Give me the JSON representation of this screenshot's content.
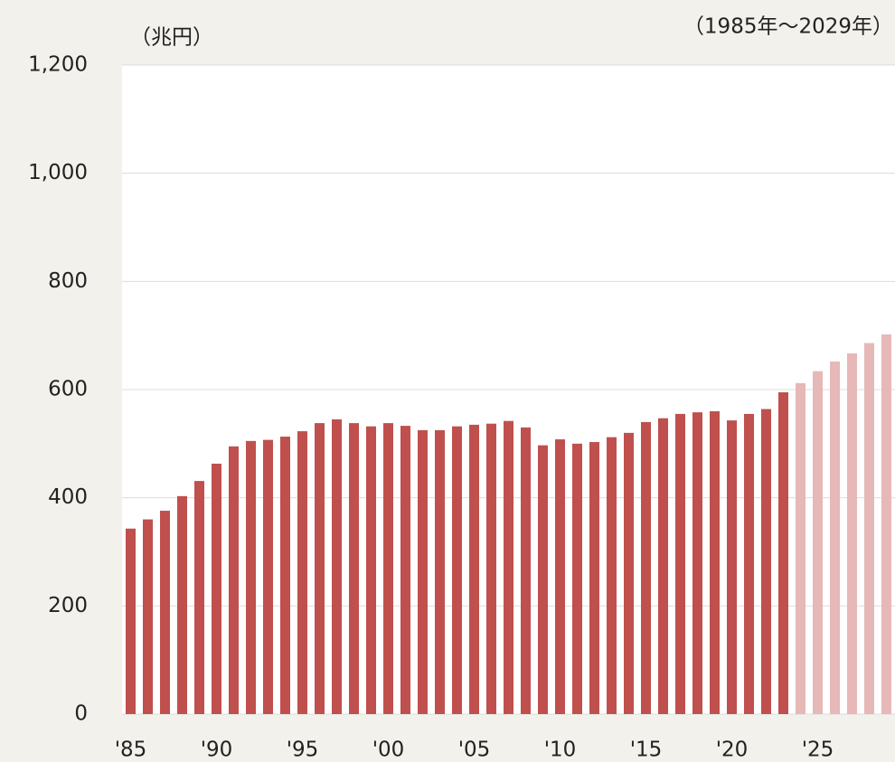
{
  "chart_data": {
    "type": "bar",
    "unit_label": "（兆円）",
    "period_label": "（1985年～2029年）",
    "categories": [
      "'85",
      null,
      null,
      null,
      null,
      "'90",
      null,
      null,
      null,
      null,
      "'95",
      null,
      null,
      null,
      null,
      "'00",
      null,
      null,
      null,
      null,
      "'05",
      null,
      null,
      null,
      null,
      "'10",
      null,
      null,
      null,
      null,
      "'15",
      null,
      null,
      null,
      null,
      "'20",
      null,
      null,
      null,
      null,
      "'25",
      null,
      null,
      null,
      null
    ],
    "values": [
      343,
      360,
      376,
      403,
      431,
      463,
      495,
      505,
      507,
      513,
      523,
      538,
      545,
      538,
      532,
      538,
      533,
      525,
      525,
      532,
      535,
      537,
      542,
      530,
      497,
      508,
      500,
      503,
      512,
      520,
      540,
      547,
      555,
      558,
      560,
      543,
      555,
      564,
      595,
      612,
      634,
      652,
      667,
      686,
      702
    ],
    "colors": [
      "#c0504d",
      "#c0504d",
      "#c0504d",
      "#c0504d",
      "#c0504d",
      "#c0504d",
      "#c0504d",
      "#c0504d",
      "#c0504d",
      "#c0504d",
      "#c0504d",
      "#c0504d",
      "#c0504d",
      "#c0504d",
      "#c0504d",
      "#c0504d",
      "#c0504d",
      "#c0504d",
      "#c0504d",
      "#c0504d",
      "#c0504d",
      "#c0504d",
      "#c0504d",
      "#c0504d",
      "#c0504d",
      "#c0504d",
      "#c0504d",
      "#c0504d",
      "#c0504d",
      "#c0504d",
      "#c0504d",
      "#c0504d",
      "#c0504d",
      "#c0504d",
      "#c0504d",
      "#c0504d",
      "#c0504d",
      "#c0504d",
      "#c0504d",
      "#e6b8b7",
      "#e6b8b7",
      "#e6b8b7",
      "#e6b8b7",
      "#e6b8b7",
      "#e6b8b7"
    ],
    "ylim": [
      0,
      1200
    ],
    "yticks": [
      0,
      200,
      400,
      600,
      800,
      {
        "value": 1000,
        "label": "1,000"
      },
      {
        "value": 1200,
        "label": "1,200"
      }
    ],
    "grid": true
  }
}
